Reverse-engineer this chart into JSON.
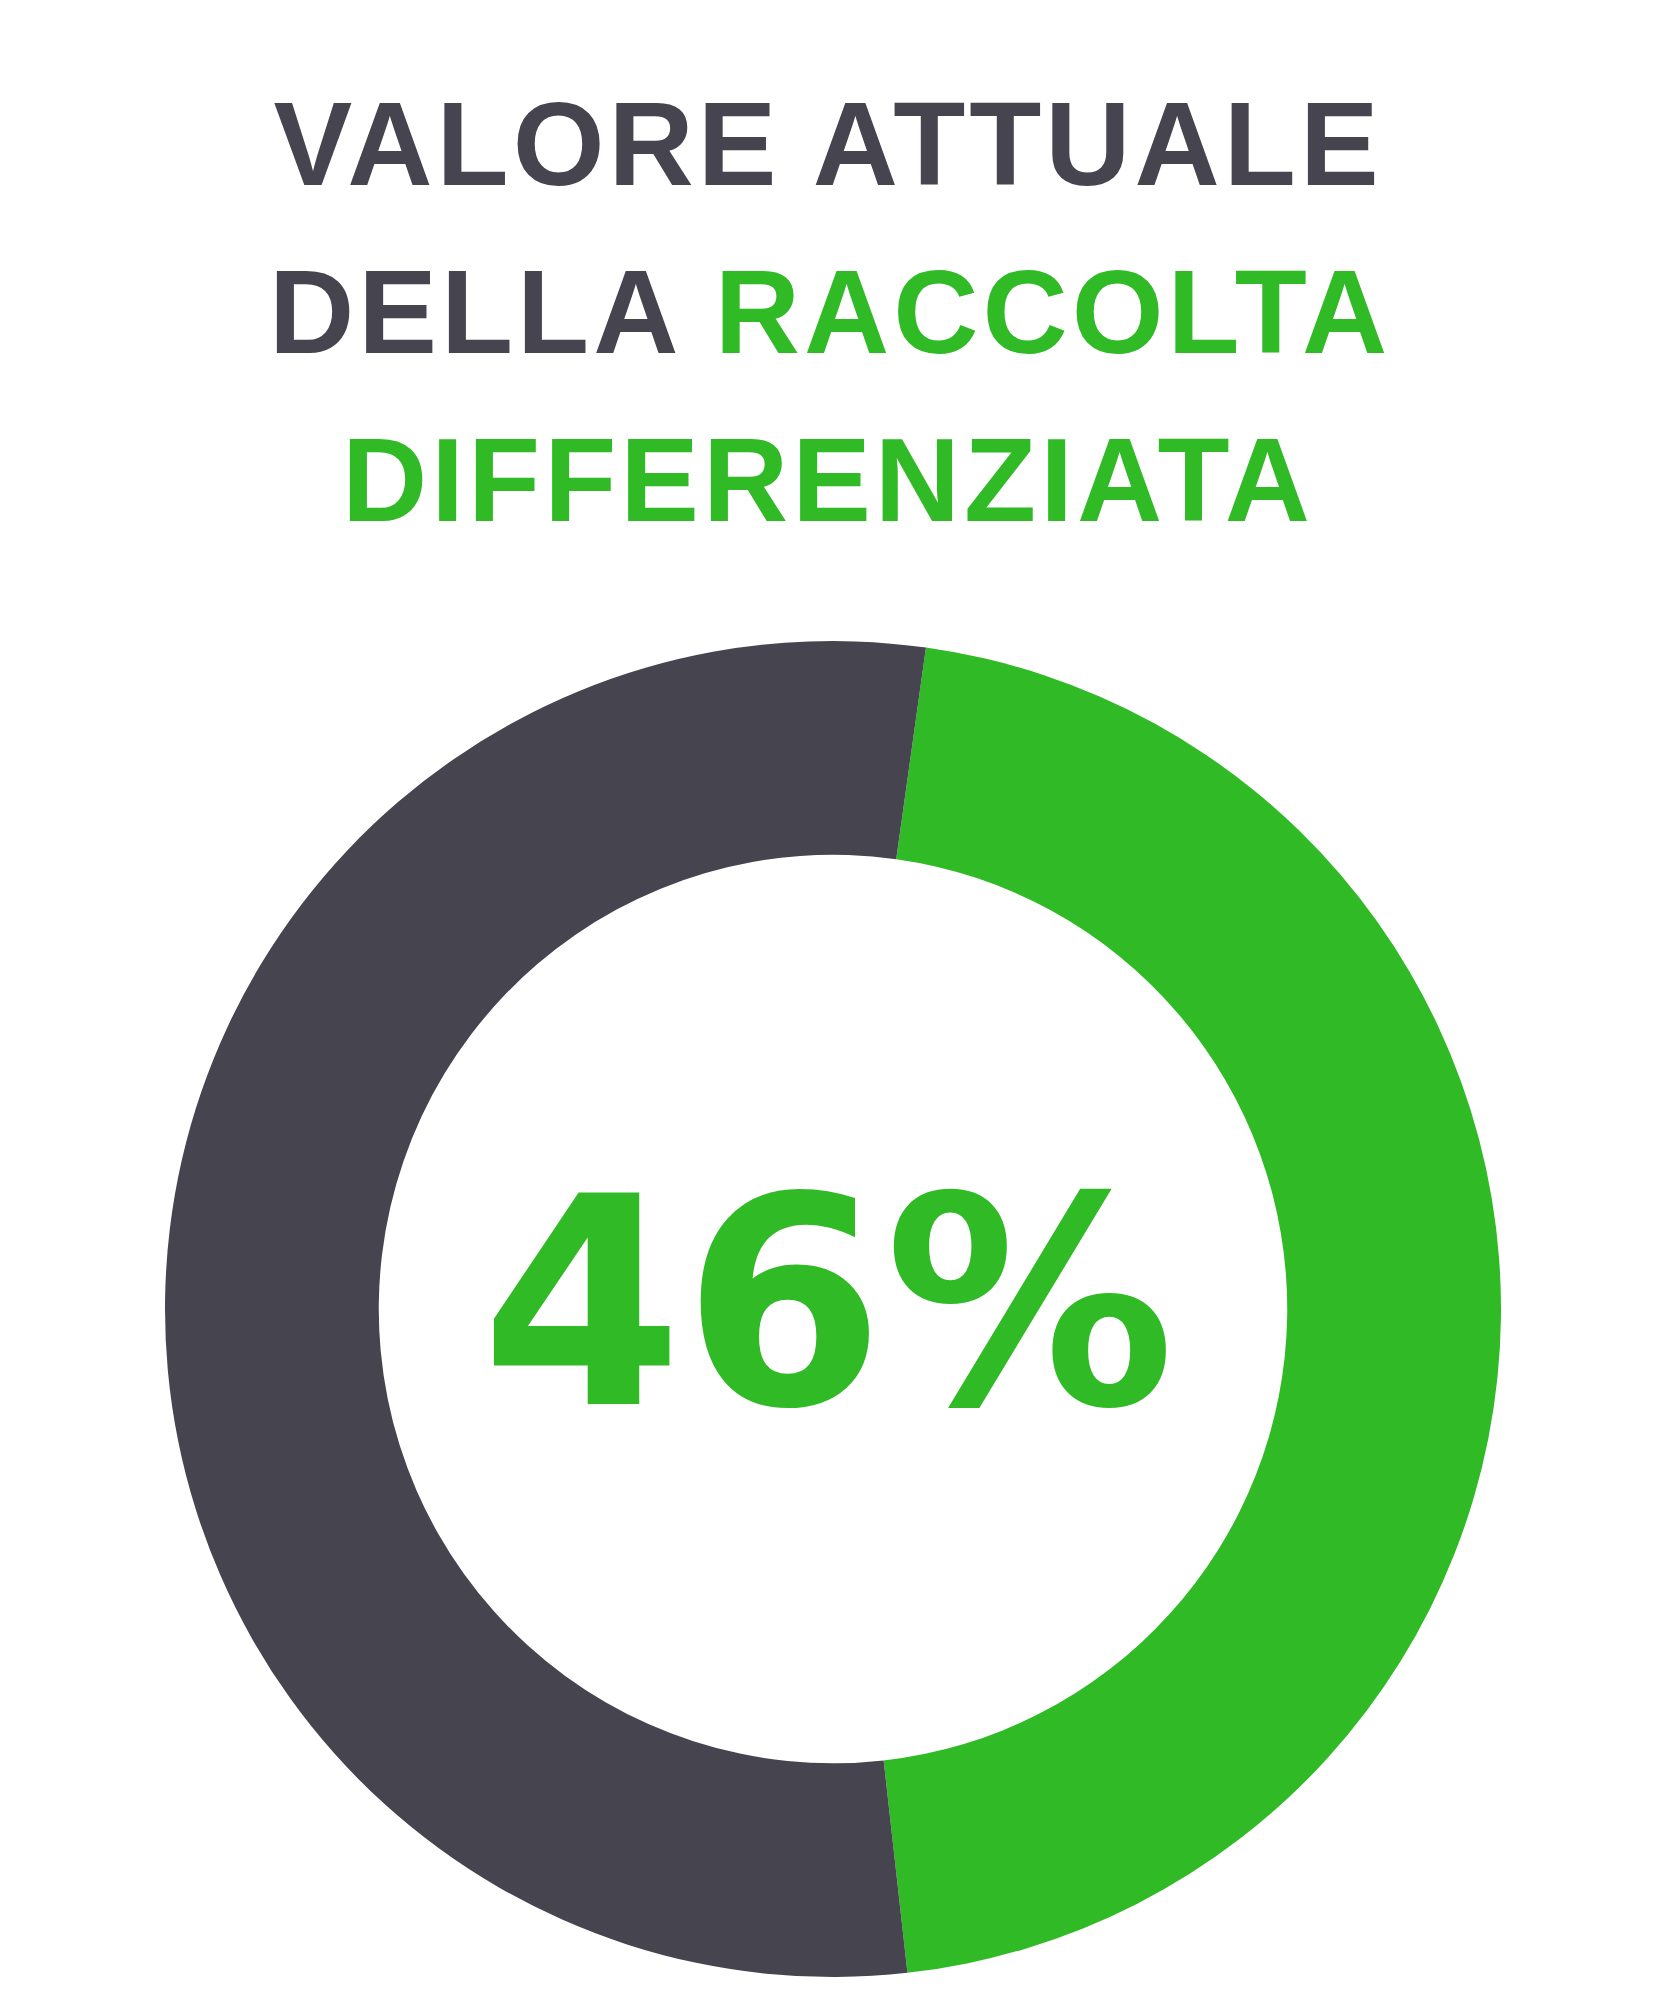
{
  "chart_data": {
    "type": "donut",
    "title": "VALORE ATTUALE DELLA RACCOLTA DIFFERENZIATA",
    "categories": [
      null,
      null
    ],
    "values": [
      46,
      54
    ],
    "colors": [
      "#2fba26",
      "#46444f"
    ],
    "annotations": [
      "46%"
    ]
  }
}
